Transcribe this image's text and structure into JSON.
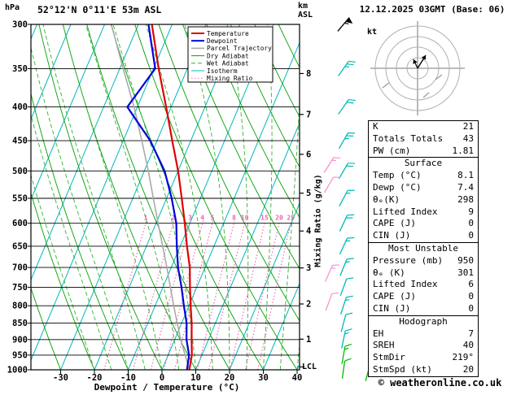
{
  "header": {
    "pressure_unit": "hPa",
    "station": "52°12'N 0°11'E 53m ASL",
    "datetime": "12.12.2025 03GMT (Base: 06)",
    "alt_line1": "km",
    "alt_line2": "ASL"
  },
  "axes": {
    "pressure_ticks": [
      300,
      350,
      400,
      450,
      500,
      550,
      600,
      650,
      700,
      750,
      800,
      850,
      900,
      950,
      1000
    ],
    "temp_ticks": [
      -30,
      -20,
      -10,
      0,
      10,
      20,
      30,
      40
    ],
    "km_ticks": [
      1,
      2,
      3,
      4,
      5,
      6,
      7,
      8
    ],
    "xlabel": "Dewpoint / Temperature (°C)",
    "mixing_ratio_label": "Mixing Ratio (g/kg)",
    "lcl_label": "LCL"
  },
  "legend": {
    "items": [
      {
        "label": "Temperature",
        "color": "#e00000",
        "dash": "",
        "width": 2
      },
      {
        "label": "Dewpoint",
        "color": "#0000dd",
        "dash": "",
        "width": 2
      },
      {
        "label": "Parcel Trajectory",
        "color": "#aaaaaa",
        "dash": "",
        "width": 1.6
      },
      {
        "label": "Dry Adiabat",
        "color": "#00a000",
        "dash": "",
        "width": 1
      },
      {
        "label": "Wet Adiabat",
        "color": "#30b430",
        "dash": "5,3",
        "width": 1
      },
      {
        "label": "Isotherm",
        "color": "#00b8b8",
        "dash": "",
        "width": 1
      },
      {
        "label": "Mixing Ratio",
        "color": "#f060b0",
        "dash": "1.5,2.5",
        "width": 1
      }
    ]
  },
  "colors": {
    "temperature": "#e00000",
    "dewpoint": "#0000dd",
    "parcel": "#aaaaaa",
    "dry_adiabat": "#00a000",
    "wet_adiabat": "#30b430",
    "isotherm": "#00b8b8",
    "mixing_ratio": "#f060b0",
    "grid": "#000000"
  },
  "chart_data": {
    "type": "skewt-log-p sounding",
    "pressure_axis_hpa": [
      300,
      1000
    ],
    "temp_axis_c": [
      -40,
      40
    ],
    "sounding": {
      "pressure_hpa": [
        1000,
        950,
        900,
        850,
        800,
        750,
        700,
        650,
        600,
        550,
        500,
        450,
        400,
        350,
        300
      ],
      "temperature_c": [
        8.1,
        7.0,
        5.0,
        3.0,
        0.5,
        -2.0,
        -4.5,
        -8.0,
        -11.5,
        -15.5,
        -20.0,
        -25.5,
        -31.5,
        -38.5,
        -46.0
      ],
      "dewpoint_c": [
        7.4,
        6.2,
        3.5,
        1.5,
        -1.5,
        -4.5,
        -8.0,
        -11.0,
        -14.0,
        -18.5,
        -24.0,
        -32.0,
        -43.0,
        -39.5,
        -47.0
      ],
      "parcel_c": [
        8.1,
        5.0,
        1.8,
        -1.3,
        -4.5,
        -7.8,
        -11.3,
        -15.2,
        -19.4,
        -23.9,
        -28.8,
        -34.5,
        -41.0,
        -49.0,
        -58.0
      ]
    },
    "mixing_ratio_lines_gkg": [
      1,
      2,
      3,
      4,
      5,
      8,
      10,
      15,
      20,
      25
    ],
    "isotherms_c": {
      "min": -80,
      "max": 40,
      "step": 10
    },
    "dry_adiabats_c": {
      "min": -30,
      "max": 160,
      "step": 10
    },
    "wet_adiabats_c": {
      "min": -20,
      "max": 40,
      "step": 5
    },
    "wind_barbs": [
      {
        "p": 300,
        "col": "main",
        "color": "#000000",
        "rot": 40,
        "flag": true,
        "full": 0,
        "half": 1
      },
      {
        "p": 350,
        "col": "main",
        "color": "#00b8b8",
        "rot": 35,
        "full": 2,
        "half": 1
      },
      {
        "p": 400,
        "col": "main",
        "color": "#00b8b8",
        "rot": 35,
        "full": 2,
        "half": 0
      },
      {
        "p": 450,
        "col": "main",
        "color": "#00b8b8",
        "rot": 30,
        "full": 2,
        "half": 1
      },
      {
        "p": 500,
        "col": "main",
        "color": "#00b8b8",
        "rot": 30,
        "full": 2,
        "half": 0
      },
      {
        "p": 550,
        "col": "main",
        "color": "#00b8b8",
        "rot": 28,
        "full": 1,
        "half": 1
      },
      {
        "p": 600,
        "col": "main",
        "color": "#00b8b8",
        "rot": 25,
        "full": 2,
        "half": 0
      },
      {
        "p": 650,
        "col": "main",
        "color": "#00b8b8",
        "rot": 25,
        "full": 1,
        "half": 1
      },
      {
        "p": 700,
        "col": "main",
        "color": "#00b8b8",
        "rot": 22,
        "full": 1,
        "half": 1
      },
      {
        "p": 750,
        "col": "main",
        "color": "#00b8b8",
        "rot": 20,
        "full": 1,
        "half": 0
      },
      {
        "p": 800,
        "col": "main",
        "color": "#00b8b8",
        "rot": 18,
        "full": 1,
        "half": 1
      },
      {
        "p": 850,
        "col": "main",
        "color": "#00b8b8",
        "rot": 15,
        "full": 1,
        "half": 0
      },
      {
        "p": 900,
        "col": "main",
        "color": "#00b8b8",
        "rot": 12,
        "full": 1,
        "half": 1
      },
      {
        "p": 950,
        "col": "main",
        "color": "#00bb00",
        "rot": 10,
        "full": 1,
        "half": 1
      },
      {
        "p": 1000,
        "col": "main",
        "color": "#00bb00",
        "rot": 8,
        "full": 1,
        "half": 0
      },
      {
        "p": 1009,
        "col": "outer",
        "color": "#00bb00",
        "rot": 15,
        "full": 1,
        "half": 0
      },
      {
        "p": 490,
        "col": "inner",
        "color": "#ff8fd0",
        "rot": 32,
        "full": 1,
        "half": 1
      },
      {
        "p": 525,
        "col": "inner",
        "color": "#ff8fd0",
        "rot": 30,
        "full": 1,
        "half": 0
      },
      {
        "p": 715,
        "col": "inner",
        "color": "#ff8fd0",
        "rot": 24,
        "full": 1,
        "half": 1
      },
      {
        "p": 790,
        "col": "inner",
        "color": "#ff8fd0",
        "rot": 20,
        "full": 1,
        "half": 0
      }
    ]
  },
  "hodograph": {
    "unit": "kt",
    "rings_kt": [
      10,
      20,
      30,
      40
    ]
  },
  "tables": {
    "summary": {
      "rows": [
        {
          "label": "K",
          "value": "21"
        },
        {
          "label": "Totals Totals",
          "value": "43"
        },
        {
          "label": "PW (cm)",
          "value": "1.81"
        }
      ]
    },
    "surface": {
      "title": "Surface",
      "rows": [
        {
          "label": "Temp (°C)",
          "value": "8.1"
        },
        {
          "label": "Dewp (°C)",
          "value": "7.4"
        },
        {
          "label": "θₑ(K)",
          "value": "298"
        },
        {
          "label": "Lifted Index",
          "value": "9"
        },
        {
          "label": "CAPE (J)",
          "value": "0"
        },
        {
          "label": "CIN (J)",
          "value": "0"
        }
      ]
    },
    "most_unstable": {
      "title": "Most Unstable",
      "rows": [
        {
          "label": "Pressure (mb)",
          "value": "950"
        },
        {
          "label": "θₑ (K)",
          "value": "301"
        },
        {
          "label": "Lifted Index",
          "value": "6"
        },
        {
          "label": "CAPE (J)",
          "value": "0"
        },
        {
          "label": "CIN (J)",
          "value": "0"
        }
      ]
    },
    "hodograph_section": {
      "title": "Hodograph",
      "rows": [
        {
          "label": "EH",
          "value": "7"
        },
        {
          "label": "SREH",
          "value": "40"
        },
        {
          "label": "StmDir",
          "value": "219°"
        },
        {
          "label": "StmSpd (kt)",
          "value": "20"
        }
      ]
    }
  },
  "footer": {
    "copyright": "© weatheronline.co.uk"
  }
}
